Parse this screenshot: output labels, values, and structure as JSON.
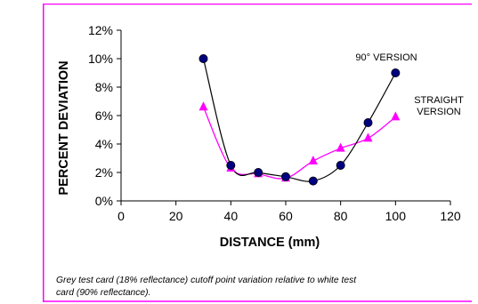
{
  "chart_data": {
    "type": "line",
    "xlabel": "DISTANCE (mm)",
    "ylabel": "PERCENT DEVIATION",
    "xlim": [
      0,
      120
    ],
    "ylim": [
      0,
      12
    ],
    "x_ticks": [
      "0",
      "20",
      "40",
      "60",
      "80",
      "100",
      "120"
    ],
    "y_ticks": [
      "0%",
      "2%",
      "4%",
      "6%",
      "8%",
      "10%",
      "12%"
    ],
    "grid": false,
    "series": [
      {
        "name": "90° VERSION",
        "color": "#000080",
        "line_color": "#000000",
        "marker": "circle",
        "x": [
          30,
          40,
          50,
          60,
          70,
          80,
          90,
          100
        ],
        "y": [
          10.0,
          2.5,
          2.0,
          1.7,
          1.4,
          2.5,
          5.5,
          9.0
        ]
      },
      {
        "name_lines": [
          "STRAIGHT",
          "VERSION"
        ],
        "color": "#ff00ff",
        "line_color": "#ff00ff",
        "marker": "triangle",
        "x": [
          30,
          40,
          50,
          60,
          70,
          80,
          90,
          100
        ],
        "y": [
          6.6,
          2.3,
          1.9,
          1.6,
          2.8,
          3.7,
          4.4,
          5.9
        ]
      }
    ]
  },
  "caption_lines": [
    "Grey test card (18% reflectance) cutoff point variation relative to white test",
    "card (90% reflectance)."
  ],
  "colors": {
    "frame": "#ff00ff",
    "axis": "#000000"
  }
}
